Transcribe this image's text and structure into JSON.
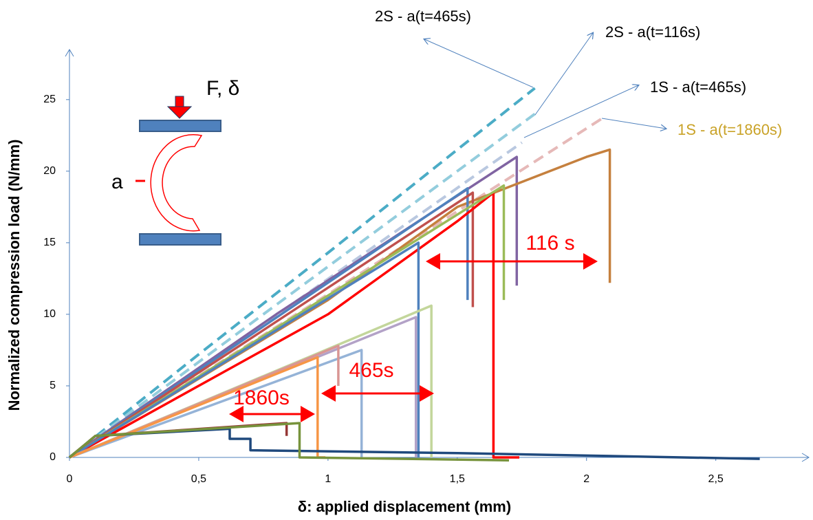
{
  "chart_data": {
    "type": "line",
    "ylabel": "Normalized compression load (N/mm)",
    "xlabel": "δ: applied displacement (mm)",
    "xlim": [
      0,
      2.86
    ],
    "ylim": [
      0,
      28.5
    ],
    "xticks": [
      0,
      {
        "value": 0.5,
        "label": "0,5"
      },
      1,
      {
        "value": 1.5,
        "label": "1,5"
      },
      2,
      {
        "value": 2.5,
        "label": "2,5"
      }
    ],
    "yticks": [
      0,
      5,
      10,
      15,
      20,
      25
    ],
    "series": [
      {
        "color": "#4bacc6",
        "dashed": true,
        "x": [
          0,
          0.5,
          1,
          1.5,
          1.8
        ],
        "values": [
          0,
          7.2,
          14.3,
          21.5,
          25.8
        ]
      },
      {
        "color": "#93cddd",
        "dashed": true,
        "x": [
          0,
          0.9,
          1.8
        ],
        "values": [
          0,
          12,
          24
        ]
      },
      {
        "color": "#b9c8e0",
        "dashed": true,
        "x": [
          0,
          0.9,
          1.75
        ],
        "values": [
          0,
          11.2,
          22
        ]
      },
      {
        "color": "#e6b9b8",
        "dashed": true,
        "x": [
          0,
          1,
          2.07
        ],
        "values": [
          0,
          11.4,
          23.8
        ]
      },
      {
        "color": "#8064a2",
        "dashed": false,
        "x": [
          0,
          0.8,
          1.73,
          1.73
        ],
        "values": [
          0,
          10,
          21,
          12
        ]
      },
      {
        "color": "#c5803e",
        "dashed": false,
        "x": [
          0,
          1,
          1.5,
          2,
          2.09,
          2.09
        ],
        "values": [
          0,
          11,
          17.5,
          21,
          21.5,
          12.2
        ]
      },
      {
        "color": "#4f81bd",
        "dashed": false,
        "x": [
          0,
          1.54,
          1.54
        ],
        "values": [
          0,
          18.8,
          11
        ]
      },
      {
        "color": "#c0504d",
        "dashed": false,
        "x": [
          0,
          1.56,
          1.56
        ],
        "values": [
          0,
          18.5,
          10.5
        ]
      },
      {
        "color": "#ff0000",
        "dashed": false,
        "x": [
          0,
          1,
          1.5,
          1.64,
          1.64,
          1.74
        ],
        "values": [
          0,
          10,
          16.5,
          18.5,
          0,
          0
        ]
      },
      {
        "color": "#9bbb59",
        "dashed": false,
        "x": [
          0,
          1.68,
          1.68
        ],
        "values": [
          0,
          19,
          11
        ]
      },
      {
        "color": "#4f81bd",
        "dashed": false,
        "x": [
          0,
          1.35,
          1.35
        ],
        "values": [
          0,
          15,
          0
        ]
      },
      {
        "color": "#c3d69b",
        "dashed": false,
        "x": [
          0,
          1.4,
          1.4
        ],
        "values": [
          0,
          10.6,
          0
        ]
      },
      {
        "color": "#b3a2c7",
        "dashed": false,
        "x": [
          0,
          1.34,
          1.34
        ],
        "values": [
          0,
          9.8,
          0
        ]
      },
      {
        "color": "#95b3d7",
        "dashed": false,
        "x": [
          0,
          1.13,
          1.13
        ],
        "values": [
          0,
          7.5,
          0
        ]
      },
      {
        "color": "#d99694",
        "dashed": false,
        "x": [
          0,
          1.04,
          1.04
        ],
        "values": [
          0,
          7.8,
          5
        ]
      },
      {
        "color": "#f79646",
        "dashed": false,
        "x": [
          0,
          0.96,
          0.96,
          0.99
        ],
        "values": [
          0,
          7,
          0,
          0
        ]
      },
      {
        "color": "#1f497d",
        "dashed": false,
        "x": [
          0,
          0.1,
          0.62,
          0.62,
          0.7,
          0.7,
          1.5,
          2.67
        ],
        "values": [
          0,
          1.5,
          2,
          1.3,
          1.3,
          0.5,
          0.3,
          -0.1
        ]
      },
      {
        "color": "#953735",
        "dashed": false,
        "x": [
          0,
          0.1,
          0.84,
          0.84
        ],
        "values": [
          0,
          1.5,
          2.4,
          1.5
        ]
      },
      {
        "color": "#77933c",
        "dashed": false,
        "x": [
          0,
          0.1,
          0.89,
          0.89,
          1.7
        ],
        "values": [
          0,
          1.5,
          2.4,
          0,
          -0.2
        ]
      }
    ],
    "annotations": [
      {
        "text": "2S - a(t=465s)",
        "color": "#000000"
      },
      {
        "text": "2S - a(t=116s)",
        "color": "#000000"
      },
      {
        "text": "1S - a(t=465s)",
        "color": "#000000"
      },
      {
        "text": "1S - a(t=1860s)",
        "color": "#c9a227"
      },
      {
        "text": "116 s",
        "color": "#ff0000"
      },
      {
        "text": "465s",
        "color": "#ff0000"
      },
      {
        "text": "1860s",
        "color": "#ff0000"
      }
    ],
    "diagram": {
      "force_label": "F, δ",
      "crack_label": "a"
    }
  }
}
